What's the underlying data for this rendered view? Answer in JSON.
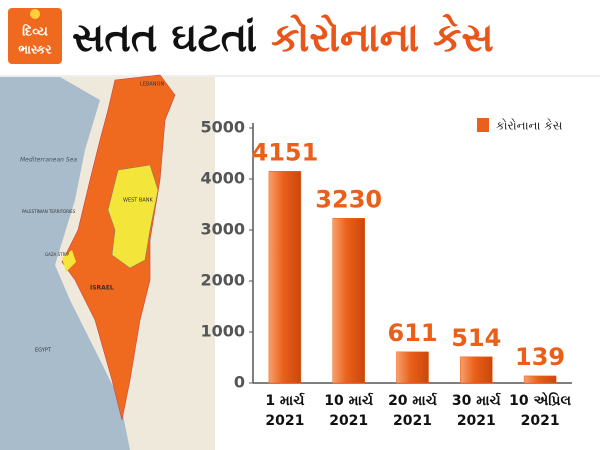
{
  "logo": [
    "દિવ્ય",
    "ભાસ્કર"
  ],
  "map_labels": [
    "LEBANON",
    "Mediterranean Sea",
    "WEST BANK",
    "ISRAEL",
    "EGYPT",
    "PALESTINIAN TERRITORIES",
    "GAZA STRIP"
  ],
  "chart_data": {
    "type": "bar",
    "title": "સતત ઘટતાં",
    "title_highlight": "કોરોનાના કેસ",
    "categories": [
      "1 માર્ચ\n2021",
      "10 માર્ચ\n2021",
      "20 માર્ચ\n2021",
      "30 માર્ચ\n2021",
      "10 એપ્રિલ\n2021"
    ],
    "series": [
      {
        "name": "કોરોનાના કેસ",
        "color": "#ea5f1a",
        "values": [
          4151,
          3230,
          611,
          514,
          139
        ]
      }
    ],
    "ylim": [
      0,
      5000
    ],
    "yticks": [
      0,
      1000,
      2000,
      3000,
      4000,
      5000
    ],
    "grid": false,
    "legend": "top-right"
  }
}
